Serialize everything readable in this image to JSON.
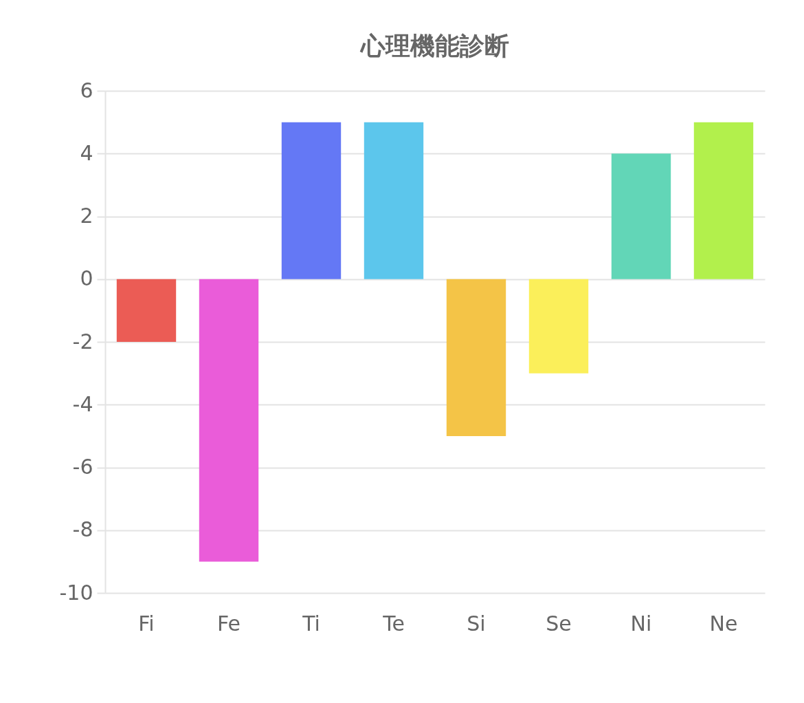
{
  "chart_data": {
    "type": "bar",
    "title": "心理機能診断",
    "categories": [
      "Fi",
      "Fe",
      "Ti",
      "Te",
      "Si",
      "Se",
      "Ni",
      "Ne"
    ],
    "values": [
      -2,
      -9,
      5,
      5,
      -5,
      -3,
      4,
      5
    ],
    "colors": [
      "#eb5c55",
      "#ea5cd9",
      "#6478f5",
      "#5cc6ec",
      "#f4c447",
      "#fbef5a",
      "#62d6b7",
      "#b2f04c"
    ],
    "ylim": [
      -10,
      6
    ],
    "yticks": [
      -10,
      -8,
      -6,
      -4,
      -2,
      0,
      2,
      4,
      6
    ],
    "grid": "y"
  }
}
